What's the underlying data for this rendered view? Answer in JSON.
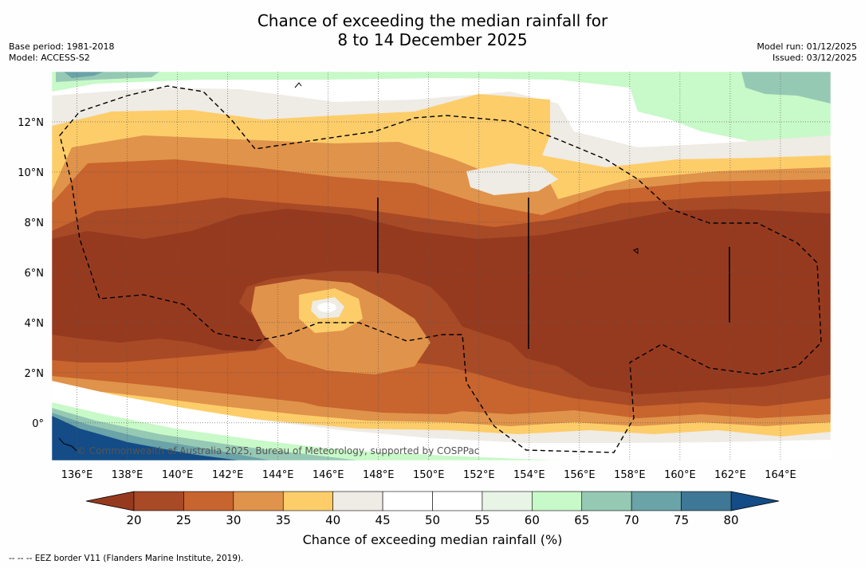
{
  "header": {
    "title_line1": "Chance of exceeding the median rainfall for",
    "title_line2": "8 to 14 December 2025",
    "base_period": "Base period: 1981-2018",
    "model": "Model: ACCESS-S2",
    "model_run": "Model run: 01/12/2025",
    "issued": "Issued: 03/12/2025"
  },
  "map": {
    "lat_labels": [
      "12°N",
      "10°N",
      "8°N",
      "6°N",
      "4°N",
      "2°N",
      "0°"
    ],
    "lat_values": [
      12,
      10,
      8,
      6,
      4,
      2,
      0
    ],
    "lon_labels": [
      "136°E",
      "138°E",
      "140°E",
      "142°E",
      "144°E",
      "146°E",
      "148°E",
      "150°E",
      "152°E",
      "154°E",
      "156°E",
      "158°E",
      "160°E",
      "162°E",
      "164°E"
    ],
    "lon_values": [
      136,
      138,
      140,
      142,
      144,
      146,
      148,
      150,
      152,
      154,
      156,
      158,
      160,
      162,
      164
    ],
    "lon_range": [
      135,
      166
    ],
    "lat_range": [
      -1.5,
      14
    ],
    "attribution": "© Commonwealth of Australia 2025, Bureau of Meteorology, supported by COSPPac"
  },
  "colorbar": {
    "ticks": [
      "20",
      "25",
      "30",
      "35",
      "40",
      "45",
      "50",
      "55",
      "60",
      "65",
      "70",
      "75",
      "80"
    ],
    "colors": [
      "#a84a26",
      "#c8642e",
      "#e0934a",
      "#fdcd6a",
      "#efebe5",
      "#ffffff",
      "#ffffff",
      "#e8f5e6",
      "#c8f9c8",
      "#96c9b4",
      "#6aa3a8",
      "#3f7796"
    ],
    "under_color": "#963a1f",
    "over_color": "#134c86",
    "label": "Chance of exceeding median rainfall (%)"
  },
  "footer": {
    "legend_text": "--  --  -- EEZ border V11 (Flanders Marine Institute, 2019)."
  }
}
